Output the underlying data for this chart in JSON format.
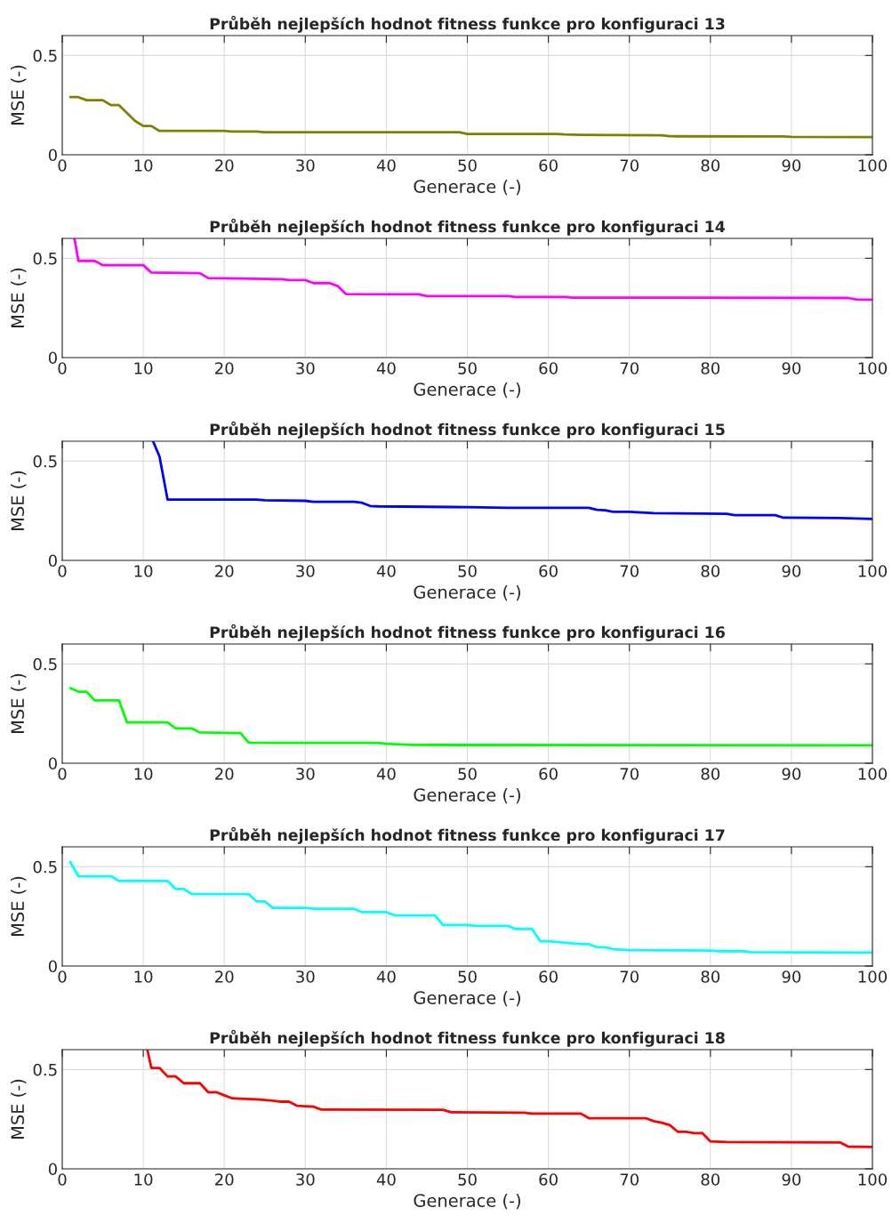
{
  "chart_data": [
    {
      "type": "line",
      "title": "Průběh nejlepších hodnot fitness funkce pro konfiguraci 13",
      "xlabel": "Generace (-)",
      "ylabel": "MSE (-)",
      "xlim": [
        0,
        100
      ],
      "xticks": [
        0,
        10,
        20,
        30,
        40,
        50,
        60,
        70,
        80,
        90,
        100
      ],
      "ylim": [
        0,
        0.6
      ],
      "yticks": [
        0,
        0.5
      ],
      "grid": true,
      "series": [
        {
          "color": "#808000",
          "x": [
            1,
            2,
            3,
            5,
            6,
            7,
            9,
            10,
            11,
            12,
            20,
            21,
            24,
            25,
            49,
            50,
            61,
            62,
            64,
            74,
            75,
            89,
            90,
            100
          ],
          "values": [
            0.29,
            0.29,
            0.275,
            0.275,
            0.25,
            0.25,
            0.17,
            0.145,
            0.145,
            0.12,
            0.12,
            0.117,
            0.117,
            0.114,
            0.114,
            0.105,
            0.105,
            0.102,
            0.1,
            0.098,
            0.093,
            0.092,
            0.09,
            0.089
          ]
        }
      ]
    },
    {
      "type": "line",
      "title": "Průběh nejlepších hodnot fitness funkce pro konfiguraci 14",
      "xlabel": "Generace (-)",
      "ylabel": "MSE (-)",
      "xlim": [
        0,
        100
      ],
      "xticks": [
        0,
        10,
        20,
        30,
        40,
        50,
        60,
        70,
        80,
        90,
        100
      ],
      "ylim": [
        0,
        0.6
      ],
      "yticks": [
        0,
        0.5
      ],
      "grid": true,
      "series": [
        {
          "color": "#ff00ff",
          "x": [
            1.5,
            2,
            4,
            5,
            10,
            11,
            17,
            18,
            27,
            28,
            30,
            31,
            33,
            34,
            35,
            44,
            45,
            55,
            56,
            62,
            63,
            97,
            98,
            100
          ],
          "values": [
            0.6,
            0.487,
            0.487,
            0.465,
            0.465,
            0.428,
            0.425,
            0.4,
            0.395,
            0.39,
            0.39,
            0.375,
            0.375,
            0.36,
            0.32,
            0.318,
            0.31,
            0.31,
            0.305,
            0.305,
            0.302,
            0.3,
            0.293,
            0.292
          ]
        }
      ]
    },
    {
      "type": "line",
      "title": "Průběh nejlepších hodnot fitness funkce pro konfiguraci 15",
      "xlabel": "Generace (-)",
      "ylabel": "MSE (-)",
      "xlim": [
        0,
        100
      ],
      "xticks": [
        0,
        10,
        20,
        30,
        40,
        50,
        60,
        70,
        80,
        90,
        100
      ],
      "ylim": [
        0,
        0.6
      ],
      "yticks": [
        0,
        0.5
      ],
      "grid": true,
      "series": [
        {
          "color": "#0000ff",
          "x": [
            11.2,
            12,
            13,
            24,
            25,
            30,
            31,
            36,
            37,
            38,
            39,
            50,
            55,
            65,
            66,
            67,
            68,
            70,
            73,
            82,
            83,
            88,
            89,
            96,
            99,
            100
          ],
          "values": [
            0.6,
            0.524,
            0.306,
            0.306,
            0.303,
            0.3,
            0.295,
            0.295,
            0.29,
            0.274,
            0.272,
            0.268,
            0.265,
            0.265,
            0.255,
            0.252,
            0.245,
            0.245,
            0.238,
            0.235,
            0.228,
            0.228,
            0.215,
            0.213,
            0.21,
            0.209
          ]
        }
      ]
    },
    {
      "type": "line",
      "title": "Průběh nejlepších hodnot fitness funkce pro konfiguraci 16",
      "xlabel": "Generace (-)",
      "ylabel": "MSE (-)",
      "xlim": [
        0,
        100
      ],
      "xticks": [
        0,
        10,
        20,
        30,
        40,
        50,
        60,
        70,
        80,
        90,
        100
      ],
      "ylim": [
        0,
        0.6
      ],
      "yticks": [
        0,
        0.5
      ],
      "grid": true,
      "series": [
        {
          "color": "#00ff00",
          "x": [
            1,
            2,
            3,
            4,
            7,
            8,
            13,
            14,
            16,
            17,
            21,
            22,
            23,
            26,
            39,
            40,
            43,
            100
          ],
          "values": [
            0.378,
            0.36,
            0.36,
            0.316,
            0.316,
            0.205,
            0.205,
            0.175,
            0.175,
            0.155,
            0.152,
            0.152,
            0.104,
            0.102,
            0.102,
            0.098,
            0.092,
            0.09
          ]
        }
      ]
    },
    {
      "type": "line",
      "title": "Průběh nejlepších hodnot fitness funkce pro konfiguraci 17",
      "xlabel": "Generace (-)",
      "ylabel": "MSE (-)",
      "xlim": [
        0,
        100
      ],
      "xticks": [
        0,
        10,
        20,
        30,
        40,
        50,
        60,
        70,
        80,
        90,
        100
      ],
      "ylim": [
        0,
        0.6
      ],
      "yticks": [
        0,
        0.5
      ],
      "grid": true,
      "series": [
        {
          "color": "#00ffff",
          "x": [
            1,
            2,
            6,
            7,
            13,
            14,
            15,
            16,
            23,
            24,
            25,
            26,
            30,
            31,
            36,
            37,
            40,
            41,
            46,
            47,
            50,
            51,
            55,
            56,
            58,
            59,
            60,
            64,
            65,
            66,
            67,
            68,
            70,
            80,
            81,
            84,
            85,
            100
          ],
          "values": [
            0.524,
            0.452,
            0.452,
            0.428,
            0.428,
            0.388,
            0.388,
            0.362,
            0.362,
            0.325,
            0.325,
            0.293,
            0.293,
            0.288,
            0.288,
            0.271,
            0.271,
            0.255,
            0.255,
            0.207,
            0.207,
            0.202,
            0.202,
            0.186,
            0.186,
            0.125,
            0.125,
            0.11,
            0.11,
            0.095,
            0.095,
            0.085,
            0.08,
            0.078,
            0.075,
            0.075,
            0.07,
            0.068
          ]
        }
      ]
    },
    {
      "type": "line",
      "title": "Průběh nejlepších hodnot fitness funkce pro konfiguraci 18",
      "xlabel": "Generace (-)",
      "ylabel": "MSE (-)",
      "xlim": [
        0,
        100
      ],
      "xticks": [
        0,
        10,
        20,
        30,
        40,
        50,
        60,
        70,
        80,
        90,
        100
      ],
      "ylim": [
        0,
        0.6
      ],
      "yticks": [
        0,
        0.5
      ],
      "grid": true,
      "series": [
        {
          "color": "#ff0000",
          "x": [
            10.5,
            11,
            12,
            13,
            14,
            15,
            17,
            18,
            19,
            20,
            21,
            22,
            24,
            26,
            27,
            28,
            29,
            31,
            32,
            47,
            48,
            57,
            58,
            64,
            65,
            72,
            73,
            74,
            75,
            76,
            77,
            78,
            79,
            80,
            82,
            96,
            97,
            100
          ],
          "values": [
            0.6,
            0.508,
            0.508,
            0.465,
            0.465,
            0.431,
            0.431,
            0.386,
            0.386,
            0.37,
            0.355,
            0.353,
            0.35,
            0.343,
            0.338,
            0.338,
            0.317,
            0.313,
            0.298,
            0.297,
            0.285,
            0.283,
            0.278,
            0.278,
            0.255,
            0.255,
            0.24,
            0.232,
            0.22,
            0.186,
            0.186,
            0.18,
            0.18,
            0.138,
            0.135,
            0.133,
            0.112,
            0.11
          ]
        }
      ]
    }
  ]
}
